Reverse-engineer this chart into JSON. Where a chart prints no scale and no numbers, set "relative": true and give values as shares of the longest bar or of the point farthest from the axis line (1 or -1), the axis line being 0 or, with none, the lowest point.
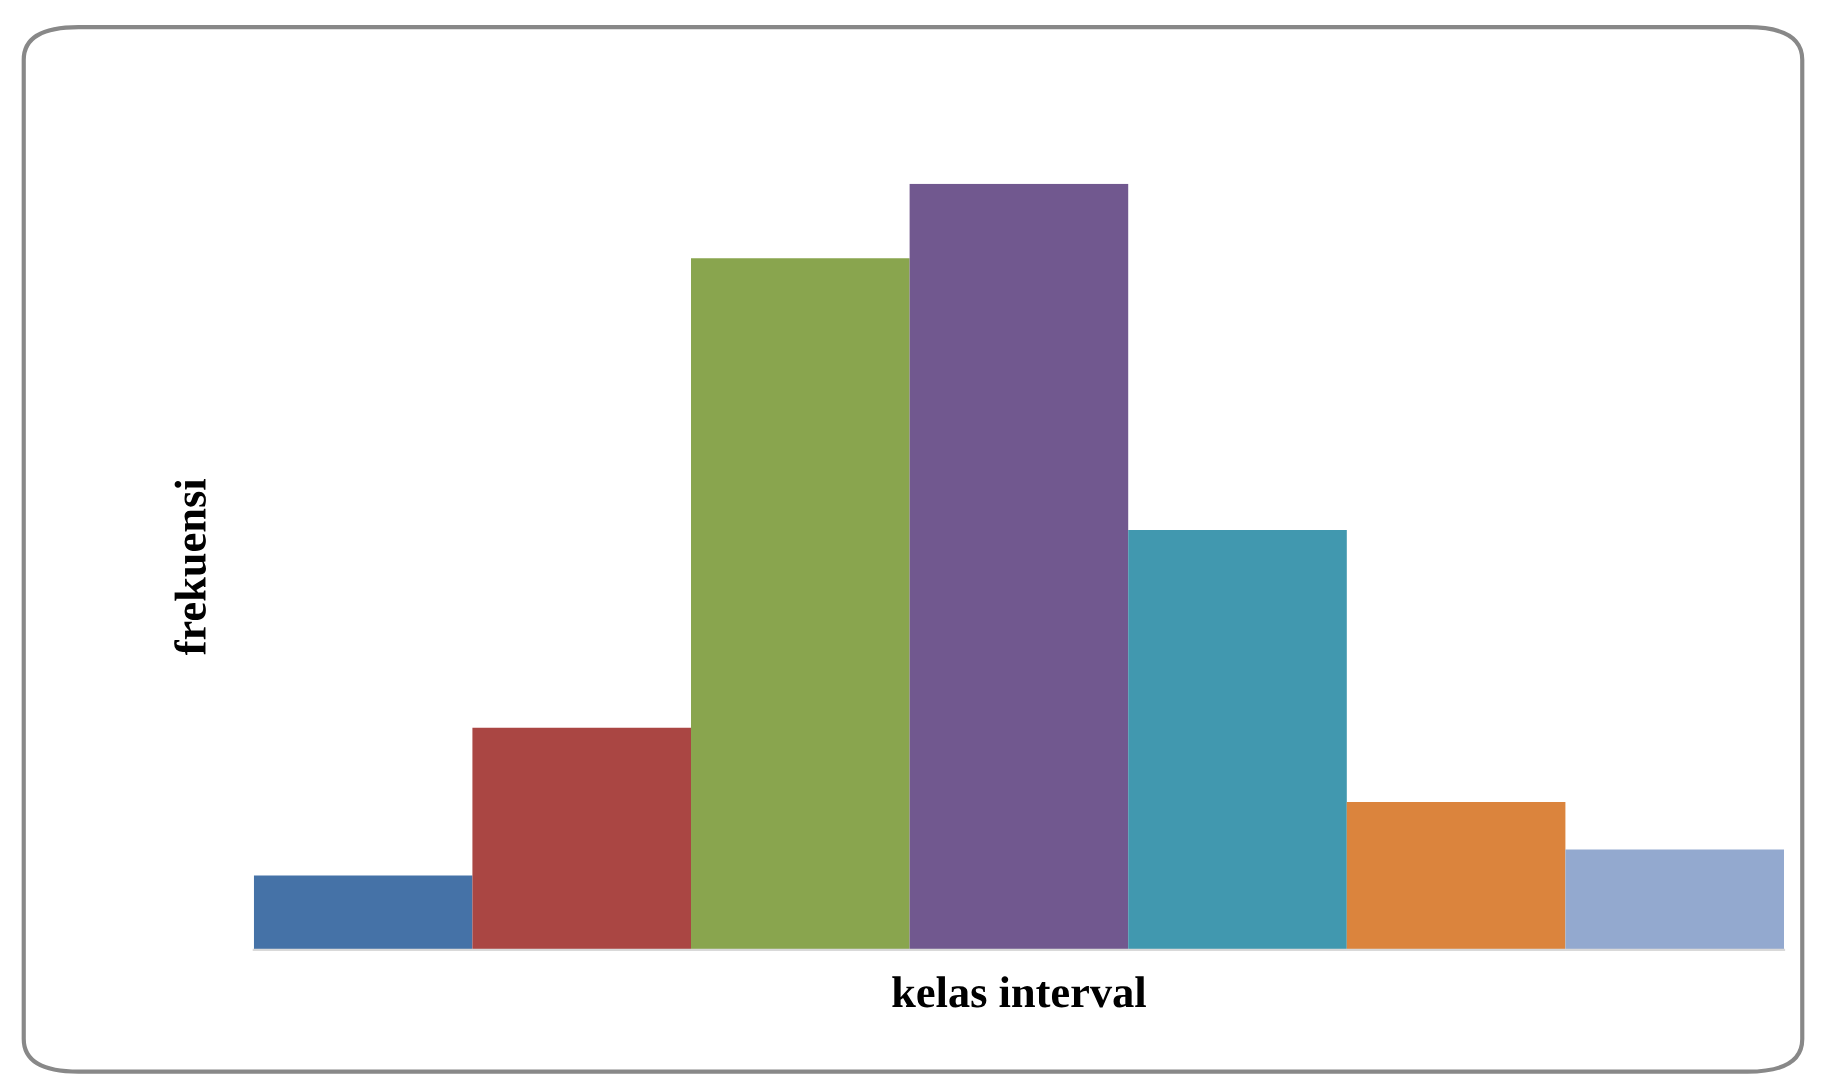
{
  "chart_data": {
    "type": "bar",
    "relative": true,
    "xlabel": "kelas interval",
    "ylabel": "frekuensi",
    "categories": [
      null,
      null,
      null,
      null,
      null,
      null,
      null
    ],
    "values": [
      0.097,
      0.29,
      0.903,
      1,
      0.548,
      0.193,
      0.131
    ],
    "colors": [
      "#4572a7",
      "#aa4643",
      "#89a54e",
      "#71588f",
      "#4198af",
      "#db843d",
      "#93a9cf"
    ],
    "grid": false,
    "legend": false
  }
}
